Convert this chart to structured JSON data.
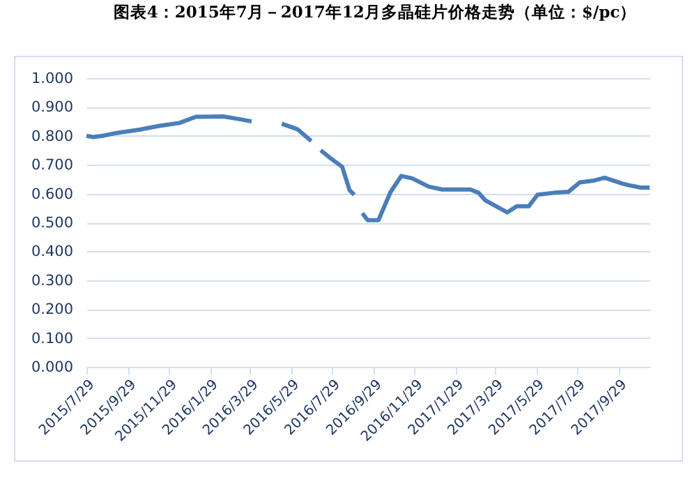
{
  "chart_data": {
    "type": "line",
    "title": "图表4：2015年7月－2017年12月多晶硅片价格走势（单位：$/pc）",
    "x": [
      "2015-07-29",
      "2015-08-08",
      "2015-08-22",
      "2015-09-12",
      "2015-10-17",
      "2015-11-13",
      "2015-12-15",
      "2016-01-08",
      "2016-02-18",
      "2016-03-10",
      "2016-03-31",
      "2016-04-21",
      "2016-05-15",
      "2016-06-08",
      "2016-06-28",
      "2016-07-05",
      "2016-07-12",
      "2016-07-27",
      "2016-08-13",
      "2016-08-24",
      "2016-08-31",
      "2016-09-05",
      "2016-09-12",
      "2016-09-20",
      "2016-10-06",
      "2016-10-24",
      "2016-11-09",
      "2016-11-25",
      "2016-12-20",
      "2017-01-09",
      "2017-02-20",
      "2017-03-04",
      "2017-03-14",
      "2017-04-16",
      "2017-04-30",
      "2017-05-18",
      "2017-05-31",
      "2017-06-25",
      "2017-07-16",
      "2017-08-02",
      "2017-08-23",
      "2017-09-08",
      "2017-10-04",
      "2017-10-14",
      "2017-10-23",
      "2017-10-31",
      "2017-11-14"
    ],
    "series": [
      {
        "color": "#4a7ebb",
        "values": [
          0.8,
          0.796,
          0.8,
          0.81,
          0.822,
          0.834,
          0.845,
          0.866,
          0.867,
          0.859,
          0.85,
          null,
          0.842,
          0.822,
          0.782,
          null,
          0.75,
          0.722,
          0.693,
          0.612,
          0.596,
          null,
          0.532,
          0.508,
          0.508,
          0.605,
          0.661,
          0.653,
          0.624,
          0.614,
          0.614,
          0.603,
          0.577,
          0.535,
          0.556,
          0.556,
          0.596,
          0.603,
          0.606,
          0.639,
          0.645,
          0.655,
          0.635,
          0.629,
          0.625,
          0.621,
          0.621
        ]
      }
    ],
    "xlim": [
      "2015-07-29",
      "2017-11-14"
    ],
    "xticks": [
      {
        "value": "2015-07-29",
        "label": "2015/7/29"
      },
      {
        "value": "2015-09-29",
        "label": "2015/9/29"
      },
      {
        "value": "2015-11-29",
        "label": "2015/11/29"
      },
      {
        "value": "2016-01-29",
        "label": "2016/1/29"
      },
      {
        "value": "2016-03-29",
        "label": "2016/3/29"
      },
      {
        "value": "2016-05-29",
        "label": "2016/5/29"
      },
      {
        "value": "2016-07-29",
        "label": "2016/7/29"
      },
      {
        "value": "2016-09-29",
        "label": "2016/9/29"
      },
      {
        "value": "2016-11-29",
        "label": "2016/11/29"
      },
      {
        "value": "2017-01-29",
        "label": "2017/1/29"
      },
      {
        "value": "2017-03-29",
        "label": "2017/3/29"
      },
      {
        "value": "2017-05-29",
        "label": "2017/5/29"
      },
      {
        "value": "2017-07-29",
        "label": "2017/7/29"
      },
      {
        "value": "2017-09-29",
        "label": "2017/9/29"
      }
    ],
    "ylim": [
      0,
      1
    ],
    "yticks": [
      {
        "value": 0,
        "label": "0.000"
      },
      {
        "value": 0.1,
        "label": "0.100"
      },
      {
        "value": 0.2,
        "label": "0.200"
      },
      {
        "value": 0.3,
        "label": "0.300"
      },
      {
        "value": 0.4,
        "label": "0.400"
      },
      {
        "value": 0.5,
        "label": "0.500"
      },
      {
        "value": 0.6,
        "label": "0.600"
      },
      {
        "value": 0.7,
        "label": "0.700"
      },
      {
        "value": 0.8,
        "label": "0.800"
      },
      {
        "value": 0.9,
        "label": "0.900"
      },
      {
        "value": 1,
        "label": "1.000"
      }
    ],
    "grid": "y",
    "line_style": "solid"
  }
}
